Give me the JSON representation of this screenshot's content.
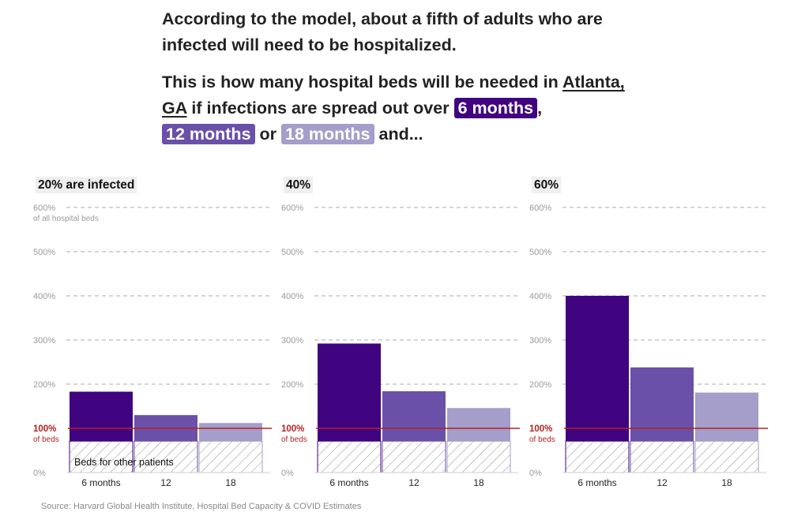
{
  "intro": {
    "line1": "According to the model, about a fifth of adults who are infected will need to be hospitalized.",
    "p2_a": "This is how many hospital beds will be needed in ",
    "location_city": "Atlanta,",
    "location_state": "GA",
    "p2_b": " if infections are spread out over ",
    "pill_6": "6 months",
    "p2_c": ",",
    "pill_12": "12 months",
    "p2_d": " or ",
    "pill_18": "18 months",
    "p2_e": " and..."
  },
  "colors": {
    "6_months": "#400480",
    "12_months": "#6a50a8",
    "18_months": "#a59dca",
    "capacity_line": "#b22222"
  },
  "chart_data": [
    {
      "type": "bar",
      "title": "20% are infected",
      "categories": [
        "6 months",
        "12",
        "18"
      ],
      "values": [
        183,
        130,
        112
      ],
      "other_patients_share": 71,
      "ylim": [
        0,
        600
      ],
      "yticks": [
        "0%",
        "100%",
        "200%",
        "300%",
        "400%",
        "500%",
        "600%"
      ],
      "ytick_sublabels": {
        "100%": "of beds",
        "600%": "of all hospital beds"
      },
      "reference_line": {
        "value": 100,
        "label": "100%"
      },
      "annotation": "Beds for other patients",
      "grid": true
    },
    {
      "type": "bar",
      "title": "40%",
      "categories": [
        "6 months",
        "12",
        "18"
      ],
      "values": [
        292,
        184,
        146
      ],
      "other_patients_share": 71,
      "ylim": [
        0,
        600
      ],
      "yticks": [
        "0%",
        "100%",
        "200%",
        "300%",
        "400%",
        "500%",
        "600%"
      ],
      "ytick_sublabels": {
        "100%": "of beds"
      },
      "reference_line": {
        "value": 100,
        "label": "100%"
      },
      "grid": true
    },
    {
      "type": "bar",
      "title": "60%",
      "categories": [
        "6 months",
        "12",
        "18"
      ],
      "values": [
        400,
        238,
        181
      ],
      "other_patients_share": 71,
      "ylim": [
        0,
        600
      ],
      "yticks": [
        "0%",
        "100%",
        "200%",
        "300%",
        "400%",
        "500%",
        "600%"
      ],
      "ytick_sublabels": {
        "100%": "of beds"
      },
      "reference_line": {
        "value": 100,
        "label": "100%"
      },
      "grid": true
    }
  ],
  "source": "Source: Harvard Global Health Institute, Hospital Bed Capacity & COVID Estimates"
}
